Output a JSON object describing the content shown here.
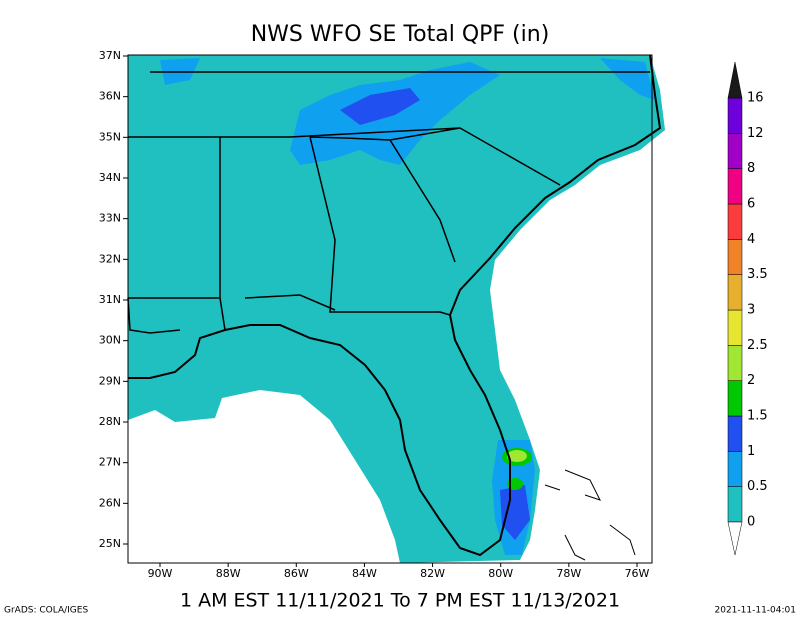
{
  "title": "NWS WFO SE Total QPF (in)",
  "subtitle": "1 AM EST 11/11/2021 To 7 PM EST 11/13/2021",
  "credit": "GrADS: COLA/IGES",
  "timestamp": "2021-11-11-04:01",
  "lat_labels": [
    "37N",
    "36N",
    "35N",
    "34N",
    "33N",
    "32N",
    "31N",
    "30N",
    "29N",
    "28N",
    "27N",
    "26N",
    "25N"
  ],
  "lon_labels": [
    "90W",
    "88W",
    "86W",
    "84W",
    "82W",
    "80W",
    "78W",
    "76W"
  ],
  "colorbar": {
    "labels": [
      "0",
      "0.5",
      "1",
      "1.5",
      "2",
      "2.5",
      "3",
      "3.5",
      "4",
      "6",
      "8",
      "12",
      "16"
    ],
    "colors": [
      "#20c0c0",
      "#10a0f0",
      "#2050f0",
      "#00c800",
      "#a0e632",
      "#e6e632",
      "#e6af2d",
      "#f08228",
      "#fa3c3c",
      "#f00082",
      "#a000c8",
      "#6e00dc"
    ],
    "over_color": "#1a1a1a",
    "under_color": "#ffffff"
  }
}
